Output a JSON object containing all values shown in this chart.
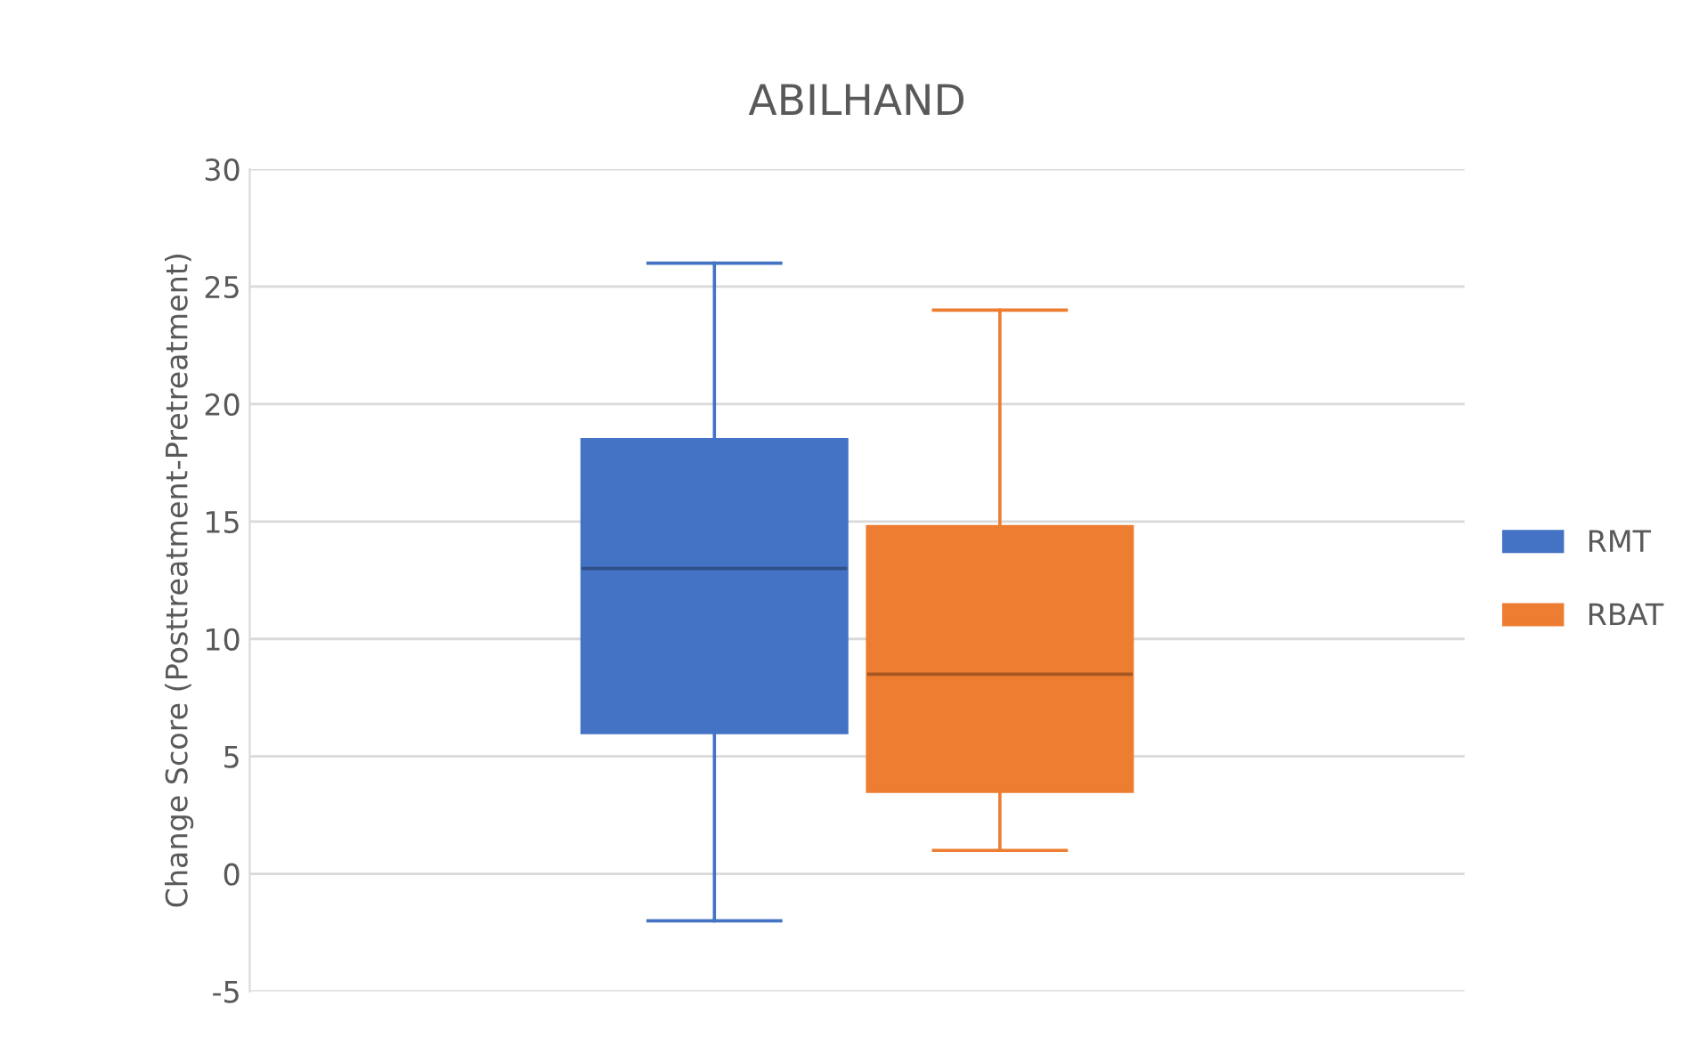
{
  "chart_data": {
    "type": "box",
    "title": "ABILHAND",
    "ylabel": "Change Score (Posttreatment-Pretreatment)",
    "categories": [
      null
    ],
    "series": [
      {
        "name": "RMT",
        "color": "#4472c4",
        "boxes": [
          {
            "low": -2,
            "q1": 6,
            "median": 13,
            "q3": 18.5,
            "high": 26
          }
        ]
      },
      {
        "name": "RBAT",
        "color": "#ed7d31",
        "boxes": [
          {
            "low": 1,
            "q1": 3.5,
            "median": 8.5,
            "q3": 14.8,
            "high": 24
          }
        ]
      }
    ],
    "ylim": [
      -5,
      30
    ],
    "yticks": [
      -5,
      0,
      5,
      10,
      15,
      20,
      25,
      30
    ],
    "grid": "y",
    "legend": "right",
    "tick_labels": "y"
  }
}
